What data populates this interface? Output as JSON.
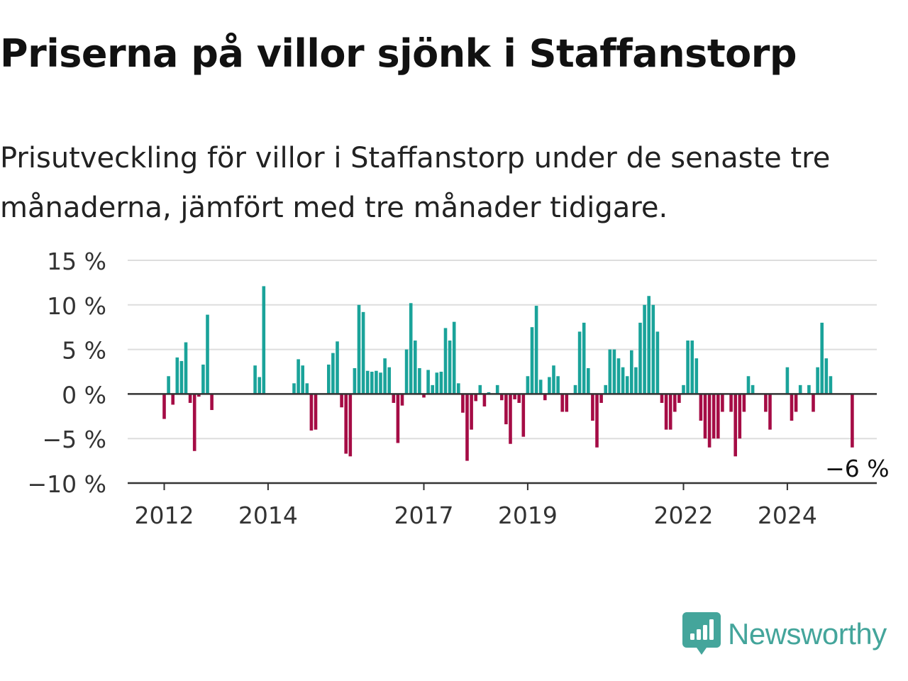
{
  "title": "Priserna på villor sjönk i Staffanstorp",
  "subtitle": "Prisutveckling för villor i Staffanstorp under de senaste tre månaderna, jämfört med tre månader tidigare.",
  "brand": {
    "name": "Newsworthy",
    "color": "#44a59b",
    "icon": "newsworthy-logo-icon"
  },
  "colors": {
    "positive": "#1aa39a",
    "negative": "#a50c45",
    "grid": "#dddddd",
    "axis": "#333333",
    "text": "#333333"
  },
  "chart_data": {
    "type": "bar",
    "title": "Priserna på villor sjönk i Staffanstorp",
    "subtitle": "Prisutveckling för villor i Staffanstorp under de senaste tre månaderna, jämfört med tre månader tidigare.",
    "xlabel": "",
    "ylabel": "",
    "unit": "%",
    "ylim": [
      -10,
      15
    ],
    "yticks": [
      -10,
      -5,
      0,
      5,
      10,
      15
    ],
    "ytick_labels": [
      "−10 %",
      "−5 %",
      "0 %",
      "5 %",
      "10 %",
      "15 %"
    ],
    "grid": true,
    "legend": "none",
    "start": "2012-01",
    "frequency": "monthly",
    "xticks": [
      "2012-01",
      "2014-01",
      "2017-01",
      "2019-01",
      "2022-01",
      "2024-01"
    ],
    "xtick_labels": [
      "2012",
      "2014",
      "2017",
      "2019",
      "2022",
      "2024"
    ],
    "annotation": {
      "label": "−6 %",
      "date": "2025-06",
      "value": -6
    },
    "values": [
      -2.8,
      2.0,
      -1.2,
      4.1,
      3.7,
      5.8,
      -1.0,
      -6.4,
      -0.3,
      3.3,
      8.9,
      -1.8,
      0,
      0,
      0,
      0,
      0,
      0,
      0,
      0,
      0,
      3.2,
      1.9,
      12.1,
      0,
      0,
      0,
      0,
      0,
      0,
      1.2,
      3.9,
      3.2,
      1.2,
      -4.1,
      -4.0,
      0,
      0,
      3.3,
      4.6,
      5.9,
      -1.5,
      -6.7,
      -7.0,
      2.9,
      10.0,
      9.2,
      2.6,
      2.5,
      2.6,
      2.4,
      4.0,
      3.0,
      -1.0,
      -5.5,
      -1.3,
      5.0,
      10.2,
      6.0,
      2.9,
      -0.4,
      2.7,
      1.0,
      2.4,
      2.5,
      7.4,
      6.0,
      8.1,
      1.2,
      -2.1,
      -7.5,
      -4.0,
      -0.8,
      1.0,
      -1.4,
      0.2,
      0,
      1.0,
      -0.7,
      -3.4,
      -5.6,
      -0.6,
      -1.0,
      -4.8,
      2.0,
      7.5,
      9.9,
      1.6,
      -0.7,
      1.9,
      3.2,
      2.0,
      -2.0,
      -2.0,
      0,
      1.0,
      7.0,
      8.0,
      2.9,
      -3.0,
      -6.0,
      -1.0,
      1.0,
      5.0,
      5.0,
      4.0,
      3.0,
      2.0,
      4.9,
      3.0,
      8.0,
      10.0,
      11.0,
      10.0,
      7.0,
      -1.0,
      -4.0,
      -4.0,
      -2.0,
      -1.0,
      1.0,
      6.0,
      6.0,
      4.0,
      -3.0,
      -5.0,
      -6.0,
      -5.0,
      -5.0,
      -2.0,
      0,
      -2.0,
      -7.0,
      -5.0,
      -2.0,
      2.0,
      1.0,
      0,
      0,
      -2.0,
      -4.0,
      0,
      0,
      0,
      3.0,
      -3.0,
      -2.0,
      1.0,
      0,
      1.0,
      -2.0,
      3.0,
      8.0,
      4.0,
      2.0,
      0,
      0,
      0,
      0,
      -6.0
    ]
  }
}
